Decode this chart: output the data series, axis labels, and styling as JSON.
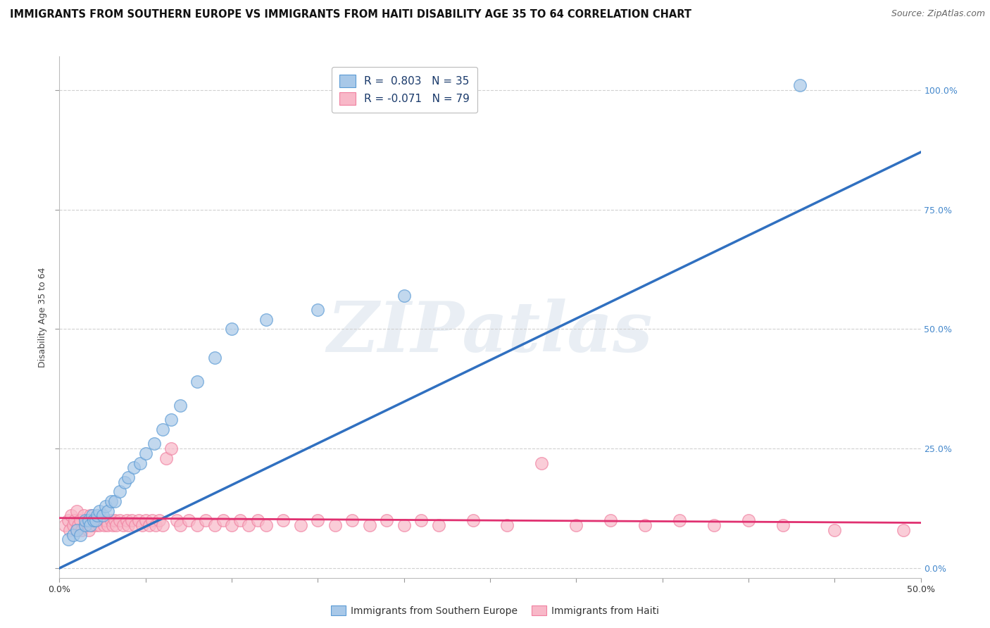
{
  "title": "IMMIGRANTS FROM SOUTHERN EUROPE VS IMMIGRANTS FROM HAITI DISABILITY AGE 35 TO 64 CORRELATION CHART",
  "source": "Source: ZipAtlas.com",
  "ylabel": "Disability Age 35 to 64",
  "ytick_labels": [
    "0.0%",
    "25.0%",
    "50.0%",
    "75.0%",
    "100.0%"
  ],
  "ytick_vals": [
    0.0,
    0.25,
    0.5,
    0.75,
    1.0
  ],
  "xlim": [
    0.0,
    0.5
  ],
  "ylim": [
    -0.02,
    1.07
  ],
  "legend_r1": "R =  0.803   N = 35",
  "legend_r2": "R = -0.071   N = 79",
  "legend_color": "#1a3a6b",
  "blue_scatter_x": [
    0.005,
    0.008,
    0.01,
    0.012,
    0.015,
    0.015,
    0.017,
    0.018,
    0.019,
    0.02,
    0.021,
    0.022,
    0.023,
    0.025,
    0.027,
    0.028,
    0.03,
    0.032,
    0.035,
    0.038,
    0.04,
    0.043,
    0.047,
    0.05,
    0.055,
    0.06,
    0.065,
    0.07,
    0.08,
    0.09,
    0.1,
    0.12,
    0.15,
    0.2,
    0.43
  ],
  "blue_scatter_y": [
    0.06,
    0.07,
    0.08,
    0.07,
    0.09,
    0.1,
    0.1,
    0.09,
    0.11,
    0.1,
    0.1,
    0.11,
    0.12,
    0.11,
    0.13,
    0.12,
    0.14,
    0.14,
    0.16,
    0.18,
    0.19,
    0.21,
    0.22,
    0.24,
    0.26,
    0.29,
    0.31,
    0.34,
    0.39,
    0.44,
    0.5,
    0.52,
    0.54,
    0.57,
    1.01
  ],
  "pink_scatter_x": [
    0.003,
    0.005,
    0.006,
    0.007,
    0.008,
    0.009,
    0.01,
    0.01,
    0.011,
    0.012,
    0.013,
    0.014,
    0.015,
    0.016,
    0.017,
    0.018,
    0.019,
    0.02,
    0.021,
    0.022,
    0.023,
    0.025,
    0.026,
    0.027,
    0.028,
    0.03,
    0.031,
    0.032,
    0.033,
    0.035,
    0.037,
    0.039,
    0.04,
    0.042,
    0.044,
    0.046,
    0.048,
    0.05,
    0.052,
    0.054,
    0.056,
    0.058,
    0.06,
    0.062,
    0.065,
    0.068,
    0.07,
    0.075,
    0.08,
    0.085,
    0.09,
    0.095,
    0.1,
    0.105,
    0.11,
    0.115,
    0.12,
    0.13,
    0.14,
    0.15,
    0.16,
    0.17,
    0.18,
    0.19,
    0.2,
    0.21,
    0.22,
    0.24,
    0.26,
    0.28,
    0.3,
    0.32,
    0.34,
    0.36,
    0.38,
    0.4,
    0.42,
    0.45,
    0.49
  ],
  "pink_scatter_y": [
    0.09,
    0.1,
    0.08,
    0.11,
    0.09,
    0.1,
    0.08,
    0.12,
    0.09,
    0.1,
    0.08,
    0.11,
    0.09,
    0.1,
    0.08,
    0.11,
    0.09,
    0.1,
    0.09,
    0.1,
    0.09,
    0.1,
    0.09,
    0.1,
    0.09,
    0.1,
    0.09,
    0.1,
    0.09,
    0.1,
    0.09,
    0.1,
    0.09,
    0.1,
    0.09,
    0.1,
    0.09,
    0.1,
    0.09,
    0.1,
    0.09,
    0.1,
    0.09,
    0.23,
    0.25,
    0.1,
    0.09,
    0.1,
    0.09,
    0.1,
    0.09,
    0.1,
    0.09,
    0.1,
    0.09,
    0.1,
    0.09,
    0.1,
    0.09,
    0.1,
    0.09,
    0.1,
    0.09,
    0.1,
    0.09,
    0.1,
    0.09,
    0.1,
    0.09,
    0.22,
    0.09,
    0.1,
    0.09,
    0.1,
    0.09,
    0.1,
    0.09,
    0.08,
    0.08
  ],
  "blue_line_x": [
    0.0,
    0.5
  ],
  "blue_line_y": [
    0.0,
    0.87
  ],
  "pink_line_x": [
    0.0,
    0.5
  ],
  "pink_line_y": [
    0.105,
    0.095
  ],
  "blue_scatter_color": "#a8c8e8",
  "blue_scatter_edge": "#5b9bd5",
  "pink_scatter_color": "#f8b8c8",
  "pink_scatter_edge": "#f080a0",
  "blue_line_color": "#3070c0",
  "pink_line_color": "#e03070",
  "watermark_text": "ZIPatlas",
  "grid_color": "#d0d0d0",
  "title_fontsize": 10.5,
  "source_fontsize": 9,
  "tick_fontsize": 9,
  "ylabel_fontsize": 9
}
